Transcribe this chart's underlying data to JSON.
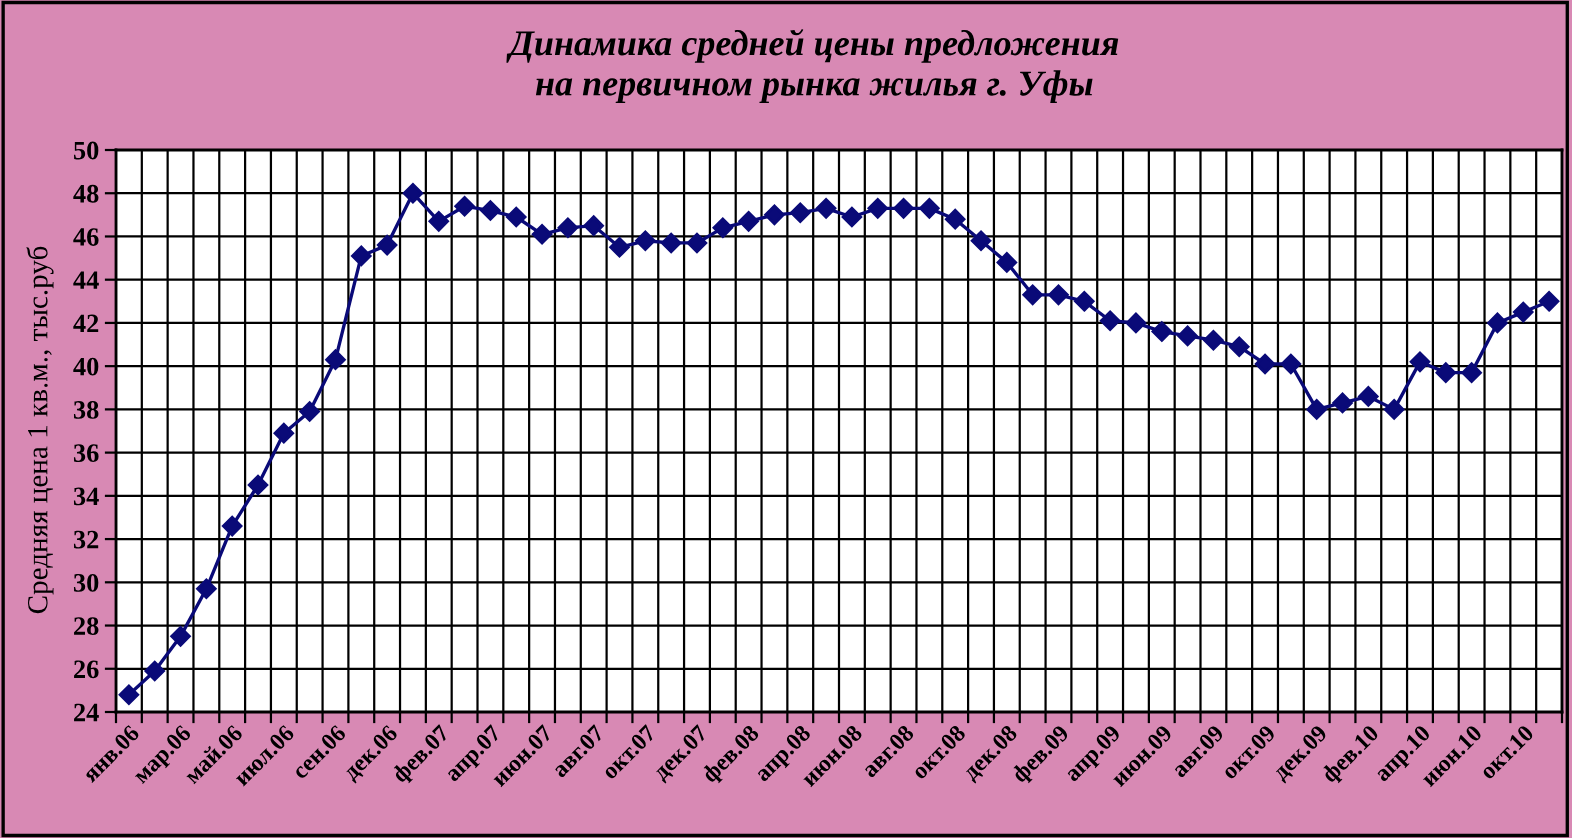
{
  "chart_data": {
    "type": "line",
    "title": "Динамика средней цены предложения\nна первичном рынка жилья г. Уфы",
    "ylabel": "Средняя цена 1 кв.м., тыс.руб",
    "categories": [
      "янв.06",
      null,
      "мар.06",
      null,
      "май.06",
      null,
      "июл.06",
      null,
      "сен.06",
      null,
      "дек.06",
      null,
      "фев.07",
      null,
      "апр.07",
      null,
      "июн.07",
      null,
      "авг.07",
      null,
      "окт.07",
      null,
      "дек.07",
      null,
      "фев.08",
      null,
      "апр.08",
      null,
      "июн.08",
      null,
      "авг.08",
      null,
      "окт.08",
      null,
      "дек.08",
      null,
      "фев.09",
      null,
      "апр.09",
      null,
      "июн.09",
      null,
      "авг.09",
      null,
      "окт.09",
      null,
      "дек.09",
      null,
      "фев.10",
      null,
      "апр.10",
      null,
      "июн.10",
      null,
      "окт.10",
      null
    ],
    "series": [
      {
        "color": "#0a0a78",
        "values": [
          24.8,
          25.9,
          27.5,
          29.7,
          32.6,
          34.5,
          36.9,
          37.9,
          40.3,
          45.1,
          45.6,
          48.0,
          46.7,
          47.4,
          47.2,
          46.9,
          46.1,
          46.4,
          46.5,
          45.5,
          45.8,
          45.7,
          45.7,
          46.4,
          46.7,
          47.0,
          47.1,
          47.3,
          46.9,
          47.3,
          47.3,
          47.3,
          46.8,
          45.8,
          44.8,
          43.3,
          43.3,
          43.0,
          42.1,
          42.0,
          41.6,
          41.4,
          41.2,
          40.9,
          40.1,
          40.1,
          38.0,
          38.3,
          38.6,
          38.0,
          40.2,
          39.7,
          39.7,
          42.0,
          42.5,
          43.0
        ]
      }
    ],
    "ylim": [
      24,
      50
    ],
    "yticks": [
      24,
      26,
      28,
      30,
      32,
      34,
      36,
      38,
      40,
      42,
      44,
      46,
      48,
      50
    ],
    "grid": true,
    "marker": "diamond",
    "line_style": "solid"
  }
}
